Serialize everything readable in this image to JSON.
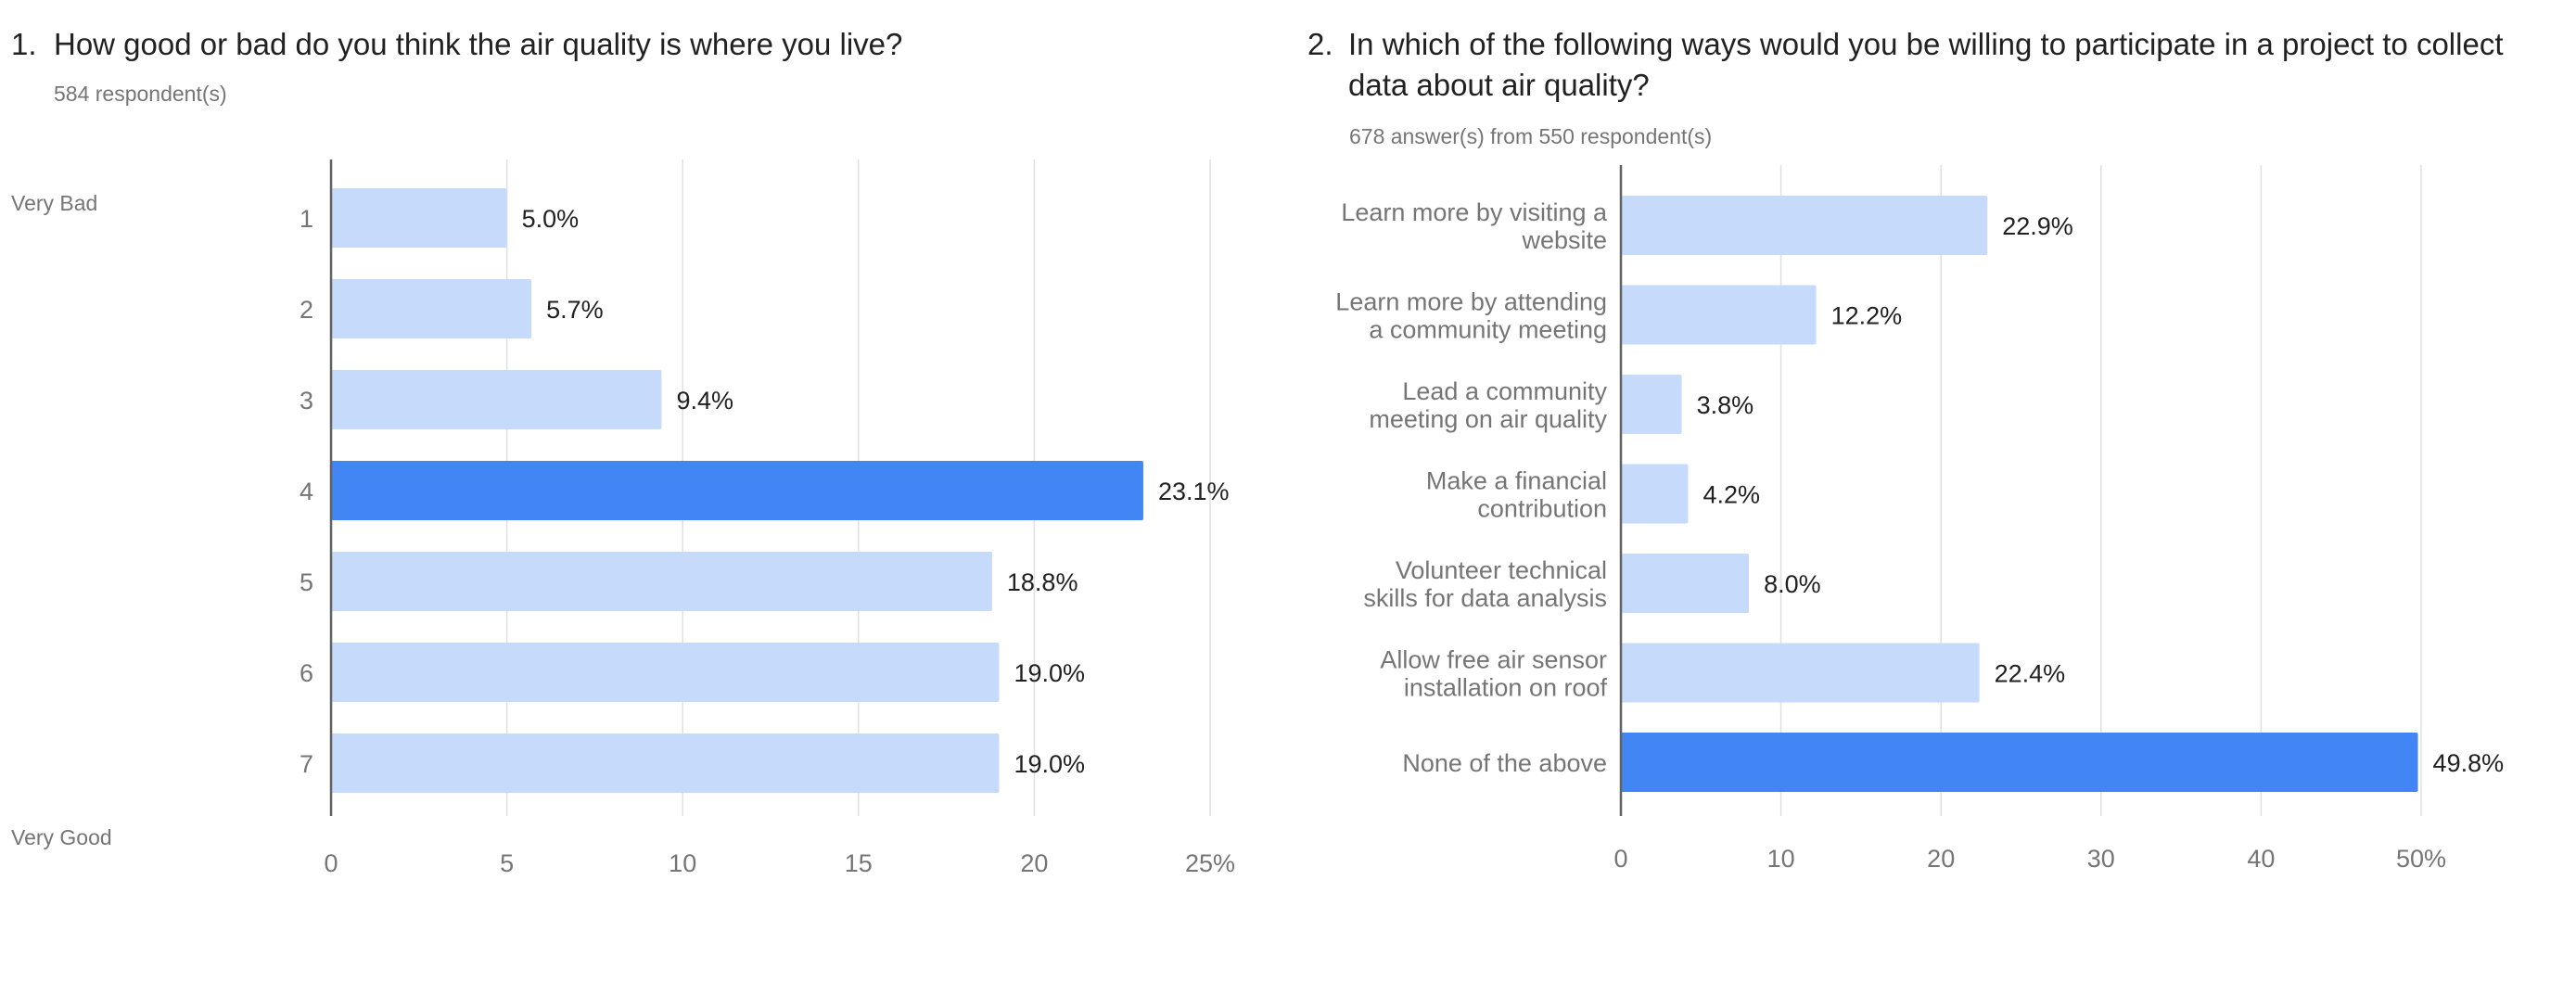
{
  "charts": [
    {
      "number": "1.",
      "question": "How good or bad do you think the air quality is where you live?",
      "subtitle": "584 respondent(s)",
      "scale_low": "Very Bad",
      "scale_high": "Very Good"
    },
    {
      "number": "2.",
      "question": "In which of the following ways would you be willing to participate in a project to collect data about air quality?",
      "subtitle": "678 answer(s) from 550 respondent(s)"
    }
  ],
  "colors": {
    "bar": "#c6dafc",
    "highlight": "#4285f4",
    "grid": "#e0e0e0",
    "axis": "#616161"
  },
  "chart_data": [
    {
      "type": "bar",
      "orientation": "horizontal",
      "categories": [
        "1",
        "2",
        "3",
        "4",
        "5",
        "6",
        "7"
      ],
      "values": [
        5.0,
        5.7,
        9.4,
        23.1,
        18.8,
        19.0,
        19.0
      ],
      "value_labels": [
        "5.0%",
        "5.7%",
        "9.4%",
        "23.1%",
        "18.8%",
        "19.0%",
        "19.0%"
      ],
      "highlight_index": 3,
      "xlim": [
        0,
        25
      ],
      "ticks": [
        0,
        5,
        10,
        15,
        20,
        25
      ],
      "tick_labels": [
        "0",
        "5",
        "10",
        "15",
        "20",
        "25%"
      ],
      "grid": true
    },
    {
      "type": "bar",
      "orientation": "horizontal",
      "categories": [
        [
          "Learn more by visiting a",
          "website"
        ],
        [
          "Learn more by attending",
          "a community meeting"
        ],
        [
          "Lead a community",
          "meeting on air quality"
        ],
        [
          "Make a financial",
          "contribution"
        ],
        [
          "Volunteer technical",
          "skills for data analysis"
        ],
        [
          "Allow free air sensor",
          "installation on roof"
        ],
        [
          "None of the above"
        ]
      ],
      "values": [
        22.9,
        12.2,
        3.8,
        4.2,
        8.0,
        22.4,
        49.8
      ],
      "value_labels": [
        "22.9%",
        "12.2%",
        "3.8%",
        "4.2%",
        "8.0%",
        "22.4%",
        "49.8%"
      ],
      "highlight_index": 6,
      "xlim": [
        0,
        50
      ],
      "ticks": [
        0,
        10,
        20,
        30,
        40,
        50
      ],
      "tick_labels": [
        "0",
        "10",
        "20",
        "30",
        "40",
        "50%"
      ],
      "grid": true
    }
  ]
}
